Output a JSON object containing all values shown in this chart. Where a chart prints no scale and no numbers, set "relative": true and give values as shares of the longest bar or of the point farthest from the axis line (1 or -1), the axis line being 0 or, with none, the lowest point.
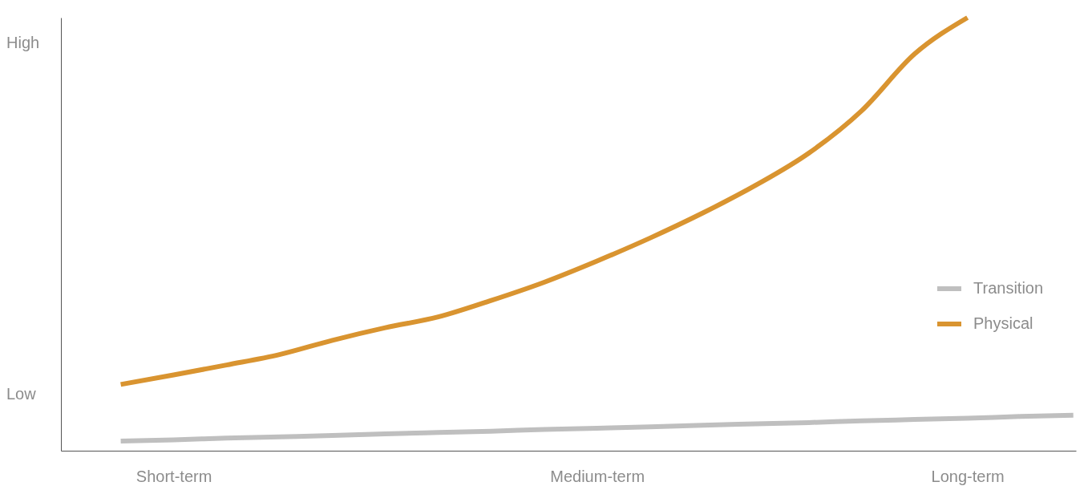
{
  "chart_data": {
    "type": "line",
    "relative": true,
    "categories": [
      null,
      "Short-term",
      null,
      null,
      null,
      null,
      null,
      null,
      null,
      "Medium-term",
      null,
      null,
      null,
      null,
      null,
      null,
      "Long-term",
      null,
      null
    ],
    "annotations": [
      "Low",
      "High"
    ],
    "series": [
      {
        "name": "Transition",
        "color": "#bfbfbf",
        "values": [
          0.022,
          0.025,
          0.029,
          0.032,
          0.035,
          0.039,
          0.042,
          0.045,
          0.049,
          0.052,
          0.055,
          0.059,
          0.062,
          0.065,
          0.069,
          0.072,
          0.075,
          0.079,
          0.082
        ]
      },
      {
        "name": "Physical",
        "color": "#d99430",
        "values": [
          0.153,
          0.175,
          0.198,
          0.222,
          0.255,
          0.284,
          0.309,
          0.347,
          0.389,
          0.438,
          0.491,
          0.549,
          0.613,
          0.687,
          0.785,
          0.916,
          1.0,
          null,
          null
        ]
      }
    ],
    "grid": false,
    "legend": "right",
    "line_style": "solid",
    "marker": "none"
  }
}
